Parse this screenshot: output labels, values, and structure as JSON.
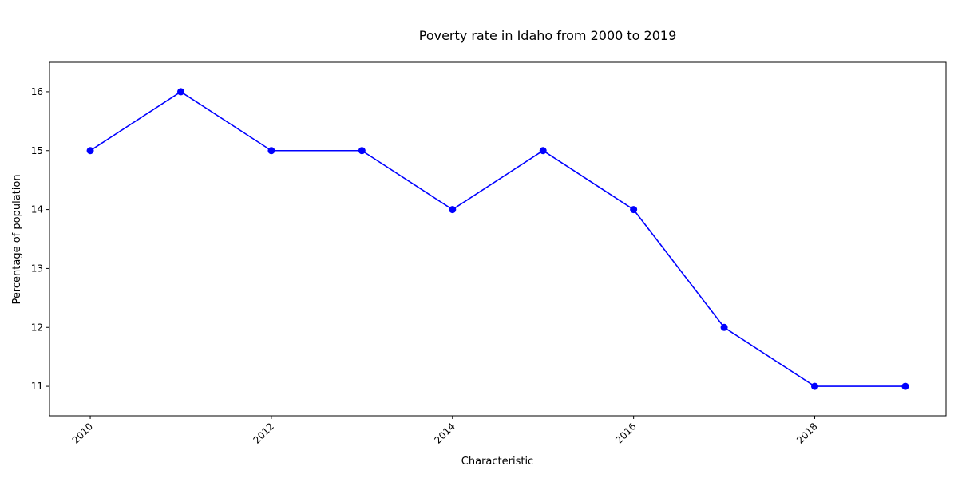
{
  "chart_data": {
    "type": "line",
    "title": "Poverty rate in Idaho from 2000 to 2019",
    "xlabel": "Characteristic",
    "ylabel": "Percentage of population",
    "x": [
      2010,
      2011,
      2012,
      2013,
      2014,
      2015,
      2016,
      2017,
      2018,
      2019
    ],
    "series": [
      {
        "values": [
          15,
          16,
          15,
          15,
          14,
          15,
          14,
          12,
          11,
          11
        ]
      }
    ],
    "xlim": [
      2009.55,
      2019.45
    ],
    "ylim": [
      10.5,
      16.5
    ],
    "xticks": [
      2010,
      2012,
      2014,
      2016,
      2018
    ],
    "xtick_labels": [
      "2010",
      "2012",
      "2014",
      "2016",
      "2018"
    ],
    "yticks": [
      11,
      12,
      13,
      14,
      15,
      16
    ],
    "ytick_labels": [
      "11",
      "12",
      "13",
      "14",
      "15",
      "16"
    ],
    "line_color": "#0000ff",
    "marker_color": "#0000ff",
    "grid": false,
    "legend": "none"
  }
}
